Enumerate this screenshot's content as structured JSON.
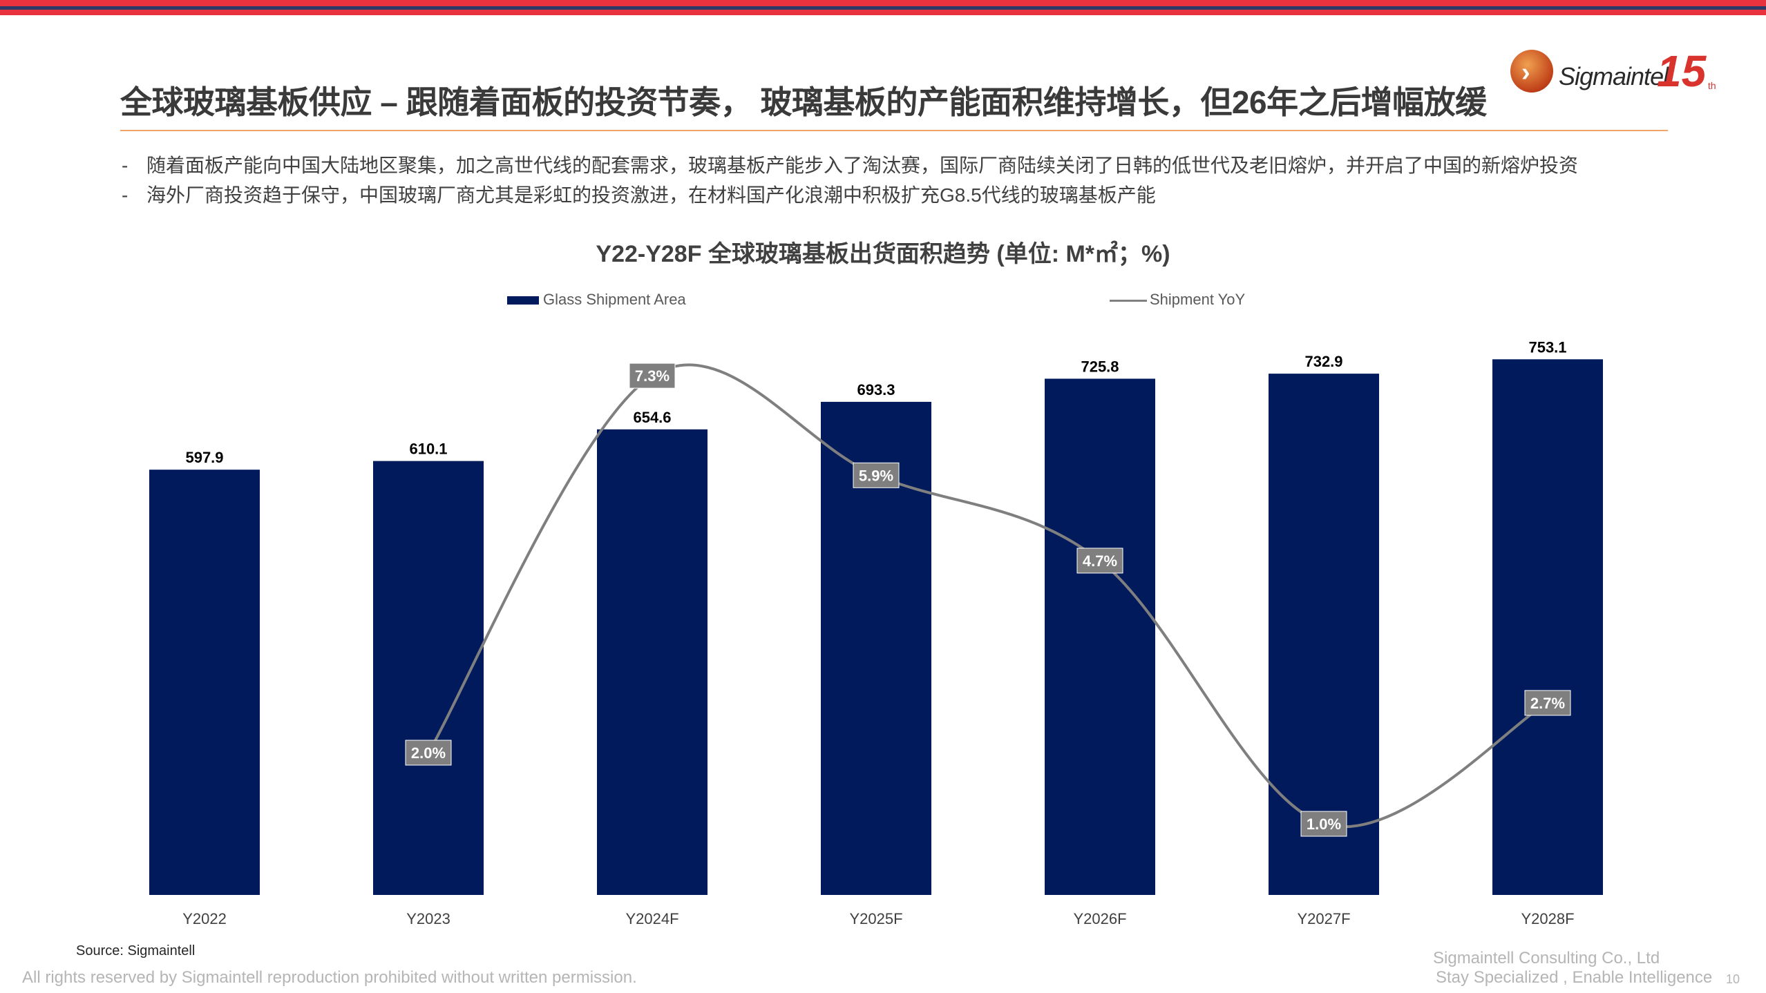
{
  "title": "全球玻璃基板供应 – 跟随着面板的投资节奏， 玻璃基板的产能面积维持增长，但26年之后增幅放缓",
  "logo": {
    "brand": "Sigmaintell",
    "anniversary": "15",
    "suffix": "th"
  },
  "bullets": [
    {
      "dash": "-",
      "text": "随着面板产能向中国大陆地区聚集，加之高世代线的配套需求，玻璃基板产能步入了淘汰赛，国际厂商陆续关闭了日韩的低世代及老旧熔炉，并开启了中国的新熔炉投资"
    },
    {
      "dash": "-",
      "text": "海外厂商投资趋于保守，中国玻璃厂商尤其是彩虹的投资激进，在材料国产化浪潮中积极扩充G8.5代线的玻璃基板产能"
    }
  ],
  "chart_data": {
    "type": "bar",
    "title": "Y22-Y28F 全球玻璃基板出货面积趋势 (单位: M*㎡；%)",
    "categories": [
      "Y2022",
      "Y2023",
      "Y2024F",
      "Y2025F",
      "Y2026F",
      "Y2027F",
      "Y2028F"
    ],
    "series": [
      {
        "name": "Glass Shipment Area",
        "type": "bar",
        "color": "#001a5c",
        "values": [
          597.9,
          610.1,
          654.6,
          693.3,
          725.8,
          732.9,
          753.1
        ],
        "labels": [
          "597.9",
          "610.1",
          "654.6",
          "693.3",
          "725.8",
          "732.9",
          "753.1"
        ]
      },
      {
        "name": "Shipment YoY",
        "type": "line",
        "color": "#7f7f7f",
        "axis": "secondary",
        "values": [
          null,
          2.0,
          7.3,
          5.9,
          4.7,
          1.0,
          2.7
        ],
        "labels": [
          "",
          "2.0%",
          "7.3%",
          "5.9%",
          "4.7%",
          "1.0%",
          "2.7%"
        ]
      }
    ],
    "ylim": [
      0,
      800
    ],
    "y2lim": [
      0,
      8
    ],
    "legend": "top",
    "grid": false
  },
  "footer": {
    "source": "Source: Sigmaintell",
    "rights": "All rights reserved by Sigmaintell reproduction prohibited without written permission.",
    "company": "Sigmaintell Consulting Co., Ltd",
    "tagline": "Stay Specialized , Enable Intelligence",
    "page": "10"
  }
}
